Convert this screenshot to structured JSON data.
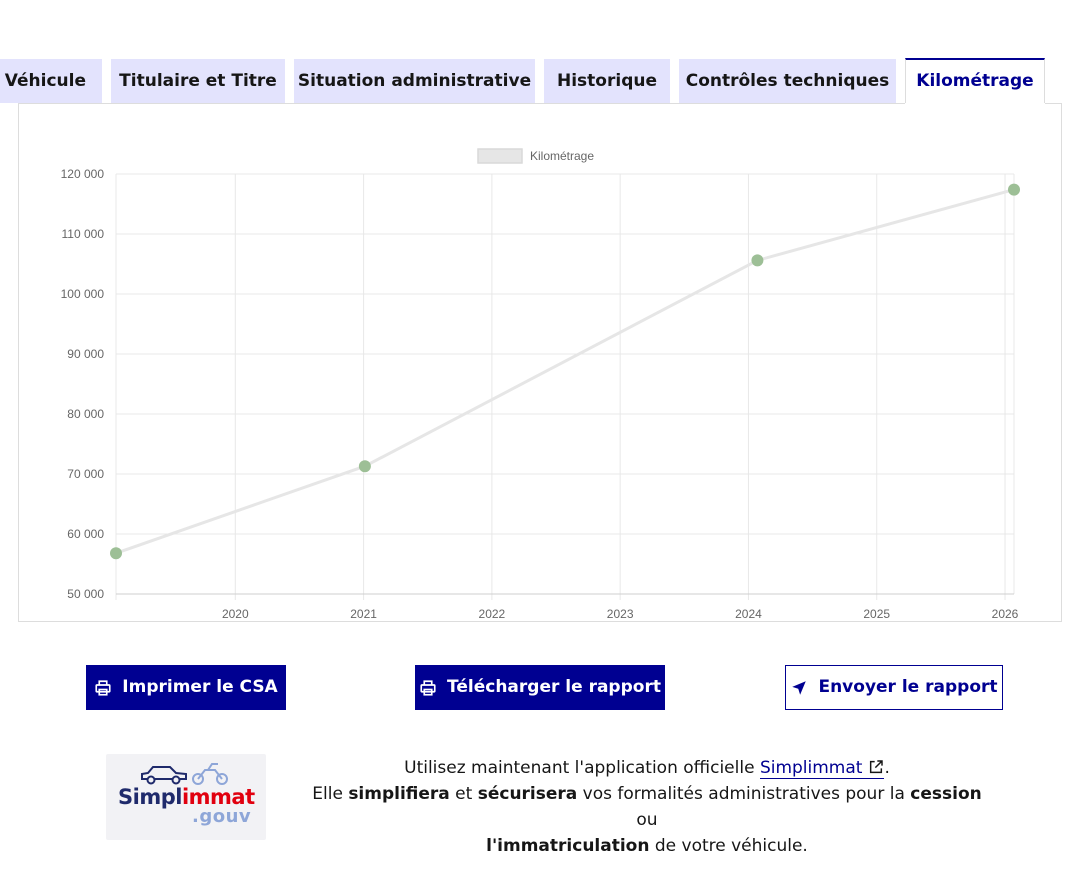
{
  "tabs": [
    {
      "label": "Véhicule",
      "active": false
    },
    {
      "label": "Titulaire et Titre",
      "active": false
    },
    {
      "label": "Situation administrative",
      "active": false
    },
    {
      "label": "Historique",
      "active": false
    },
    {
      "label": "Contrôles techniques",
      "active": false
    },
    {
      "label": "Kilométrage",
      "active": true
    }
  ],
  "chart_data": {
    "type": "line",
    "legend": "Kilométrage",
    "legend_position": "top-center",
    "series": [
      {
        "name": "Kilométrage",
        "points": [
          {
            "x": 2019.07,
            "y": 56800
          },
          {
            "x": 2021.01,
            "y": 71300
          },
          {
            "x": 2024.07,
            "y": 105600
          },
          {
            "x": 2026.07,
            "y": 117400
          }
        ]
      }
    ],
    "xlim": [
      2019.07,
      2026.07
    ],
    "x_ticks": [
      "2020",
      "2021",
      "2022",
      "2023",
      "2024",
      "2025",
      "2026"
    ],
    "ylim": [
      50000,
      120000
    ],
    "y_ticks": [
      "50 000",
      "60 000",
      "70 000",
      "80 000",
      "90 000",
      "100 000",
      "110 000",
      "120 000"
    ],
    "grid": true,
    "line_color": "#e6e6e6",
    "point_color": "#9dbf96"
  },
  "buttons": {
    "print": "Imprimer le CSA",
    "download": "Télécharger le rapport",
    "send": "Envoyer le rapport"
  },
  "logo": {
    "part1": "Simpl",
    "part2": "immat",
    "suffix": ".gouv"
  },
  "info": {
    "line1_prefix": "Utilisez maintenant l'application officielle ",
    "link": "Simplimmat",
    "line1_suffix": ".",
    "line2_a": "Elle ",
    "line2_b": "simplifiera",
    "line2_c": " et ",
    "line2_d": "sécurisera",
    "line2_e": " vos formalités administratives pour la ",
    "line2_f": "cession",
    "line2_g": " ou",
    "line3_a": "l'immatriculation",
    "line3_b": " de votre véhicule."
  },
  "colors": {
    "primary": "#000091",
    "tab_bg": "#e3e3fd"
  }
}
